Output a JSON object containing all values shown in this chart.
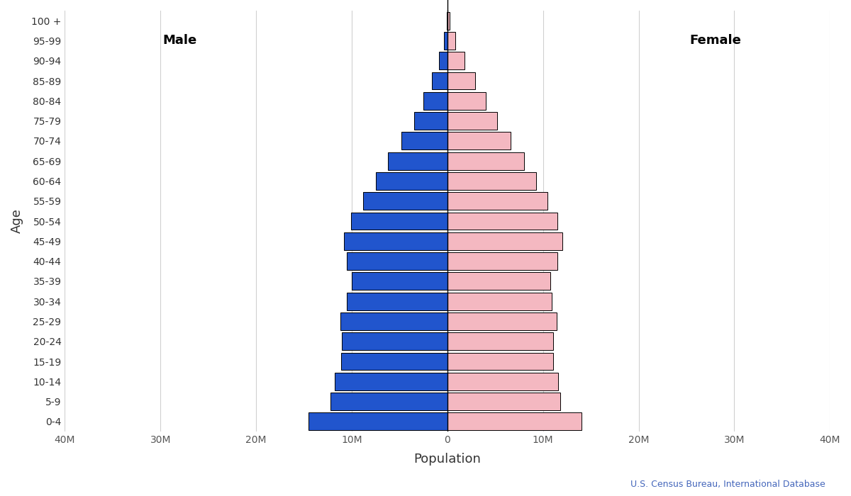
{
  "age_groups": [
    "0-4",
    "5-9",
    "10-14",
    "15-19",
    "20-24",
    "25-29",
    "30-34",
    "35-39",
    "40-44",
    "45-49",
    "50-54",
    "55-59",
    "60-64",
    "65-69",
    "70-74",
    "75-79",
    "80-84",
    "85-89",
    "90-94",
    "95-99",
    "100 +"
  ],
  "male": [
    14.5,
    12.2,
    11.8,
    11.1,
    11.0,
    11.2,
    10.5,
    10.0,
    10.5,
    10.8,
    10.1,
    8.8,
    7.5,
    6.2,
    4.8,
    3.5,
    2.5,
    1.6,
    0.9,
    0.35,
    0.09
  ],
  "female": [
    14.0,
    11.8,
    11.6,
    11.1,
    11.1,
    11.4,
    10.9,
    10.8,
    11.5,
    12.0,
    11.5,
    10.5,
    9.3,
    8.0,
    6.6,
    5.2,
    4.0,
    2.9,
    1.8,
    0.85,
    0.25
  ],
  "male_color": "#2155cd",
  "female_color": "#f4b8c1",
  "edge_color": "#000000",
  "background_color": "#ffffff",
  "xlabel": "Population",
  "ylabel": "Age",
  "male_label": "Male",
  "female_label": "Female",
  "xlim": 40,
  "tick_positions": [
    -40,
    -30,
    -20,
    -10,
    0,
    10,
    20,
    30,
    40
  ],
  "tick_labels": [
    "40M",
    "30M",
    "20M",
    "10M",
    "0",
    "10M",
    "20M",
    "30M",
    "40M"
  ],
  "source_text": "U.S. Census Bureau, International Database"
}
